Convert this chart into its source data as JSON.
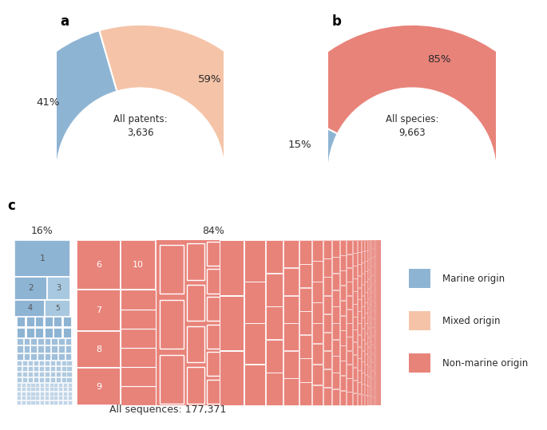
{
  "panel_a": {
    "values": [
      41,
      59
    ],
    "colors": [
      "#8eb4d4",
      "#f5c4a8"
    ],
    "labels": [
      "41%",
      "59%"
    ],
    "center_text": "All patents:\n3,636",
    "panel_label": "a"
  },
  "panel_b": {
    "values": [
      15,
      85
    ],
    "colors": [
      "#8eb4d4",
      "#e8837a"
    ],
    "labels": [
      "15%",
      "85%"
    ],
    "center_text": "All species:\n9,663",
    "panel_label": "b"
  },
  "panel_c": {
    "marine_pct": "16%",
    "nonmarine_pct": "84%",
    "center_text": "All sequences: 177,371",
    "panel_label": "c",
    "marine_color": "#8eb4d4",
    "nonmarine_color": "#e8837a"
  },
  "legend": {
    "labels": [
      "Marine origin",
      "Mixed origin",
      "Non-marine origin"
    ],
    "colors": [
      "#8eb4d4",
      "#f5c4a8",
      "#e8837a"
    ]
  },
  "background_color": "#ffffff"
}
